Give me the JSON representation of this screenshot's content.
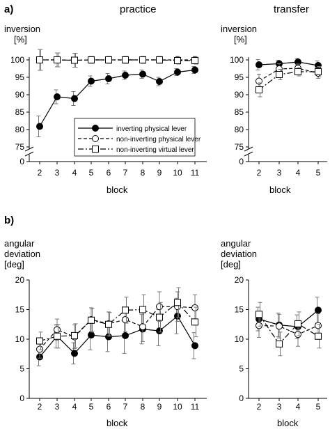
{
  "figure": {
    "panel_a_label": "a)",
    "panel_b_label": "b)",
    "practice_title": "practice",
    "transfer_title": "transfer"
  },
  "legend": {
    "items": [
      {
        "label": "inverting physical lever",
        "marker": "filled-circle",
        "dash": "solid"
      },
      {
        "label": "non-inverting physical lever",
        "marker": "open-circle",
        "dash": "dash"
      },
      {
        "label": "non-inverting virtual lever",
        "marker": "open-square",
        "dash": "dashdot"
      }
    ]
  },
  "chart_data": [
    {
      "id": "a-practice",
      "type": "line",
      "ylabel": [
        "inversion",
        "[%]"
      ],
      "xlabel": "block",
      "categories": [
        2,
        3,
        4,
        5,
        6,
        7,
        8,
        9,
        10,
        11
      ],
      "ylim": [
        70,
        100
      ],
      "yticks": [
        0,
        75,
        80,
        85,
        90,
        95,
        100
      ],
      "axis_break": true,
      "series": [
        {
          "name": "inverting physical lever",
          "marker": "filled-circle",
          "dash": "solid",
          "values": [
            80.9,
            89.4,
            88.9,
            93.9,
            94.6,
            95.6,
            95.9,
            93.8,
            96.5,
            97.1
          ],
          "errors": [
            3,
            2,
            2,
            1.5,
            1.5,
            1.2,
            1.2,
            1.2,
            1,
            1
          ],
          "connected": 9
        },
        {
          "name": "non-inverting physical lever",
          "marker": "open-circle",
          "dash": "dash",
          "values": [
            100,
            100,
            99.9,
            100,
            100,
            100,
            100,
            100,
            100,
            100
          ],
          "errors": [
            3,
            2,
            2,
            1,
            1,
            1,
            1,
            1,
            1,
            1
          ],
          "connected": 9
        },
        {
          "name": "non-inverting virtual lever",
          "marker": "open-square",
          "dash": "dashdot",
          "values": [
            100,
            100,
            99.9,
            100,
            100,
            100,
            100,
            100,
            99.8,
            99.8
          ],
          "errors": [
            3,
            2,
            2,
            1,
            1,
            1,
            1,
            1,
            1,
            1
          ],
          "connected": 9
        }
      ]
    },
    {
      "id": "a-transfer",
      "type": "line",
      "ylabel": [
        "inversion",
        "[%]"
      ],
      "xlabel": "block",
      "categories": [
        2,
        3,
        4,
        5
      ],
      "ylim": [
        70,
        100
      ],
      "yticks": [
        0,
        75,
        80,
        85,
        90,
        95,
        100
      ],
      "axis_break": true,
      "series": [
        {
          "name": "inverting physical lever",
          "marker": "filled-circle",
          "dash": "solid",
          "values": [
            98.6,
            98.9,
            99.4,
            98.4
          ],
          "errors": [
            1.5,
            1,
            1,
            1.3
          ],
          "connected": 3
        },
        {
          "name": "non-inverting physical lever",
          "marker": "open-circle",
          "dash": "dash",
          "values": [
            93.9,
            97.4,
            97.6,
            96.2
          ],
          "errors": [
            2,
            1.5,
            1.2,
            1.5
          ],
          "connected": 3
        },
        {
          "name": "non-inverting virtual lever",
          "marker": "open-square",
          "dash": "dashdot",
          "values": [
            91.4,
            95.8,
            96.6,
            96.6
          ],
          "errors": [
            2,
            1.5,
            1.2,
            1.5
          ],
          "connected": 3
        }
      ]
    },
    {
      "id": "b-practice",
      "type": "line",
      "ylabel": [
        "angular",
        "deviation",
        "[deg]"
      ],
      "xlabel": "block",
      "categories": [
        2,
        3,
        4,
        5,
        6,
        7,
        8,
        9,
        10,
        11
      ],
      "ylim": [
        0,
        20
      ],
      "yticks": [
        0,
        5,
        10,
        15,
        20
      ],
      "axis_break": false,
      "series": [
        {
          "name": "inverting physical lever",
          "marker": "filled-circle",
          "dash": "solid",
          "values": [
            7.0,
            10.5,
            7.6,
            10.7,
            10.4,
            10.6,
            11.7,
            11.4,
            13.9,
            8.9
          ],
          "errors": [
            1.5,
            2,
            1.8,
            2.5,
            2.5,
            3,
            2.5,
            2.5,
            3,
            2.2
          ],
          "connected": 9
        },
        {
          "name": "non-inverting physical lever",
          "marker": "open-circle",
          "dash": "dash",
          "values": [
            8.3,
            11.6,
            10.4,
            13.3,
            12.6,
            13.3,
            12.1,
            15.5,
            15.5,
            15.3
          ],
          "errors": [
            1.5,
            1.8,
            2,
            2,
            2,
            2,
            2.5,
            2.5,
            2.5,
            2.2
          ],
          "connected": 9
        },
        {
          "name": "non-inverting virtual lever",
          "marker": "open-square",
          "dash": "dashdot",
          "values": [
            9.7,
            10.5,
            10.6,
            13.2,
            12.5,
            14.9,
            15.0,
            13.7,
            16.2,
            12.9
          ],
          "errors": [
            1.5,
            2,
            2,
            2,
            2,
            2.2,
            2.5,
            2.5,
            2.5,
            2.5
          ],
          "connected": 9
        }
      ]
    },
    {
      "id": "b-transfer",
      "type": "line",
      "ylabel": [
        "angular",
        "deviation",
        "[deg]"
      ],
      "xlabel": "block",
      "categories": [
        2,
        3,
        4,
        5
      ],
      "ylim": [
        0,
        20
      ],
      "yticks": [
        0,
        5,
        10,
        15,
        20
      ],
      "axis_break": false,
      "series": [
        {
          "name": "inverting physical lever",
          "marker": "filled-circle",
          "dash": "solid",
          "values": [
            13.4,
            12.4,
            12.1,
            14.9
          ],
          "errors": [
            2,
            2,
            2,
            2.2
          ],
          "connected": 3
        },
        {
          "name": "non-inverting physical lever",
          "marker": "open-circle",
          "dash": "dash",
          "values": [
            12.3,
            12.2,
            10.8,
            12.3
          ],
          "errors": [
            2,
            2,
            2,
            2
          ],
          "connected": 3
        },
        {
          "name": "non-inverting virtual lever",
          "marker": "open-square",
          "dash": "dashdot",
          "values": [
            14.2,
            9.2,
            12.6,
            10.5
          ],
          "errors": [
            2,
            2,
            2,
            2
          ],
          "connected": 3
        }
      ]
    }
  ]
}
